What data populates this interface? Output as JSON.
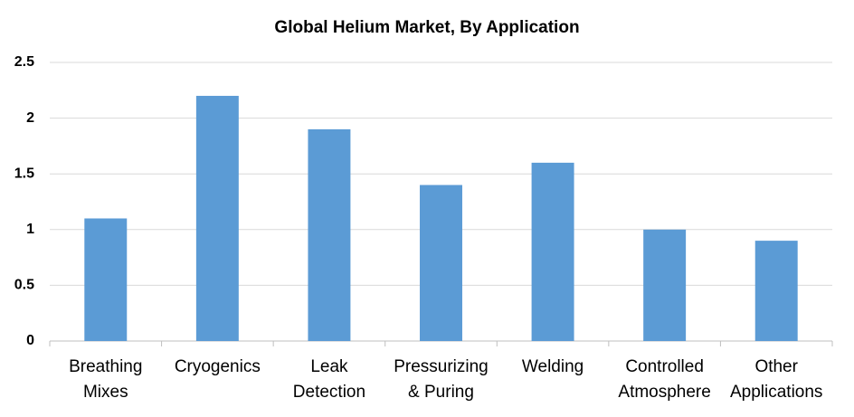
{
  "chart_data": {
    "type": "bar",
    "title": "Global Helium Market, By Application",
    "categories": [
      "Breathing Mixes",
      "Cryogenics",
      "Leak Detection",
      "Pressurizing & Puring",
      "Welding",
      "Controlled Atmosphere",
      "Other Applications"
    ],
    "values": [
      1.1,
      2.2,
      1.9,
      1.4,
      1.6,
      1.0,
      0.9
    ],
    "color": "#5b9bd5",
    "ylim": [
      0,
      2.5
    ],
    "yticks": [
      0,
      0.5,
      1,
      1.5,
      2,
      2.5
    ],
    "grid": true
  }
}
